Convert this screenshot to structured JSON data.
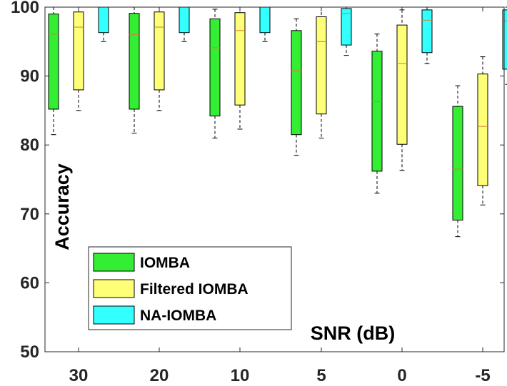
{
  "chart_data": {
    "type": "boxplot",
    "title": "",
    "xlabel": "SNR (dB)",
    "ylabel": "Accuracy",
    "ylim": [
      50,
      100
    ],
    "yticks": [
      50,
      60,
      70,
      80,
      90,
      100
    ],
    "categories": [
      "30",
      "20",
      "10",
      "5",
      "0",
      "-5"
    ],
    "legend_position": "bottom-left",
    "series": [
      {
        "name": "IOMBA",
        "color": "#33ee33",
        "boxes": [
          {
            "whisker_low": 81.5,
            "q1": 85.2,
            "median": 96.1,
            "q3": 99.0,
            "whisker_high": 100
          },
          {
            "whisker_low": 81.7,
            "q1": 85.2,
            "median": 96.0,
            "q3": 99.1,
            "whisker_high": 100
          },
          {
            "whisker_low": 81.0,
            "q1": 84.2,
            "median": 94.1,
            "q3": 98.3,
            "whisker_high": 99.7
          },
          {
            "whisker_low": 78.5,
            "q1": 81.5,
            "median": 90.8,
            "q3": 96.6,
            "whisker_high": 98.3
          },
          {
            "whisker_low": 73.0,
            "q1": 76.2,
            "median": 86.3,
            "q3": 93.6,
            "whisker_high": 96.1
          },
          {
            "whisker_low": 66.7,
            "q1": 69.1,
            "median": 76.5,
            "q3": 85.6,
            "whisker_high": 88.6
          }
        ]
      },
      {
        "name": "Filtered IOMBA",
        "color": "#ffff77",
        "boxes": [
          {
            "whisker_low": 85.0,
            "q1": 88.0,
            "median": 97.1,
            "q3": 99.3,
            "whisker_high": 100
          },
          {
            "whisker_low": 85.0,
            "q1": 88.0,
            "median": 97.1,
            "q3": 99.3,
            "whisker_high": 100
          },
          {
            "whisker_low": 82.3,
            "q1": 85.8,
            "median": 96.6,
            "q3": 99.2,
            "whisker_high": 100
          },
          {
            "whisker_low": 81.0,
            "q1": 84.5,
            "median": 95.0,
            "q3": 98.6,
            "whisker_high": 100
          },
          {
            "whisker_low": 76.3,
            "q1": 80.1,
            "median": 91.8,
            "q3": 97.4,
            "whisker_high": 99.6
          },
          {
            "whisker_low": 71.3,
            "q1": 74.1,
            "median": 82.7,
            "q3": 90.3,
            "whisker_high": 92.8
          }
        ]
      },
      {
        "name": "NA-IOMBA",
        "color": "#33ffff",
        "boxes": [
          {
            "whisker_low": 95.0,
            "q1": 96.3,
            "median": 100,
            "q3": 100,
            "whisker_high": 100
          },
          {
            "whisker_low": 95.0,
            "q1": 96.3,
            "median": 100,
            "q3": 100,
            "whisker_high": 100
          },
          {
            "whisker_low": 95.0,
            "q1": 96.3,
            "median": 100,
            "q3": 100,
            "whisker_high": 100
          },
          {
            "whisker_low": 93.0,
            "q1": 94.5,
            "median": 99.1,
            "q3": 99.8,
            "whisker_high": 100
          },
          {
            "whisker_low": 91.8,
            "q1": 93.4,
            "median": 98.1,
            "q3": 99.6,
            "whisker_high": 100
          },
          {
            "whisker_low": 88.8,
            "q1": 91.0,
            "median": 98.0,
            "q3": 99.6,
            "whisker_high": 100
          }
        ]
      }
    ]
  }
}
